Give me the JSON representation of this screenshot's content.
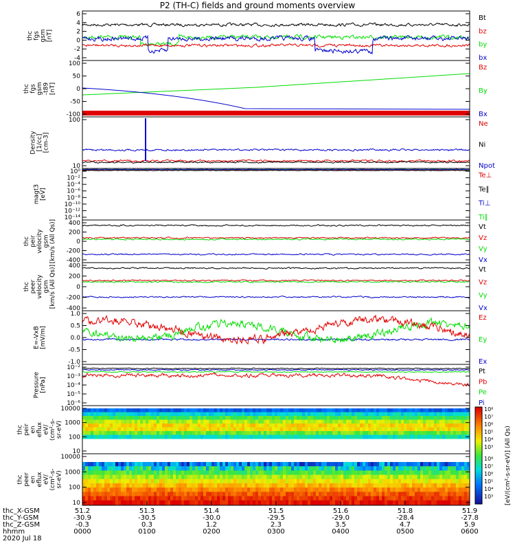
{
  "title": "P2 (TH-C) fields and ground moments overview",
  "colors": {
    "black": "#000000",
    "red": "#e00000",
    "green": "#00dd00",
    "blue": "#0000cc"
  },
  "chart_data": {
    "type": "line",
    "panels": [
      {
        "ylabel": [
          "thc",
          "fgs",
          "gsm",
          "[nT]"
        ],
        "ylim": [
          -4,
          6
        ],
        "ticks": [
          "6",
          "4",
          "2",
          "0",
          "-2",
          "-4"
        ],
        "legend": [
          {
            "name": "Bt",
            "color": "black"
          },
          {
            "name": "bz",
            "color": "red"
          },
          {
            "name": "by",
            "color": "green"
          },
          {
            "name": "bx",
            "color": "blue"
          }
        ]
      },
      {
        "ylabel": [
          "thc",
          "fgs",
          "gsm",
          "-t89",
          "[nT]"
        ],
        "ylim": [
          -130,
          100
        ],
        "ticks": [
          "100",
          "50",
          "0",
          "-50",
          "-100"
        ],
        "legend": [
          {
            "name": "Bz",
            "color": "red"
          },
          {
            "name": "By",
            "color": "green"
          },
          {
            "name": "Bx",
            "color": "blue"
          }
        ]
      },
      {
        "ylabel": [
          "Density",
          "[1/cc]",
          "[cm-3]"
        ],
        "scale": "log",
        "ticks": [
          "100",
          "10"
        ],
        "legend": [
          {
            "name": "Ne",
            "color": "red"
          },
          {
            "name": "Ni",
            "color": "black"
          },
          {
            "name": "Npot",
            "color": "blue"
          }
        ]
      },
      {
        "ylabel": [
          "magt3",
          "[eV]"
        ],
        "scale": "log",
        "ticks": [
          "10⁰",
          "10⁻²",
          "10⁻⁴",
          "10⁻⁶",
          "10⁻⁸",
          "10⁻¹⁰",
          "10⁻¹²",
          "10⁻¹⁴"
        ],
        "legend": [
          {
            "name": "Te⊥",
            "color": "red"
          },
          {
            "name": "Te∥",
            "color": "black"
          },
          {
            "name": "Ti⊥",
            "color": "blue"
          },
          {
            "name": "Ti∥",
            "color": "green"
          }
        ]
      },
      {
        "ylabel": [
          "thc",
          "peir",
          "velocity",
          "gsm",
          "[km/s (All Qs)]"
        ],
        "ylim": [
          -450,
          450
        ],
        "ticks": [
          "400",
          "200",
          "0",
          "-200",
          "-400"
        ],
        "legend": [
          {
            "name": "Vt",
            "color": "black"
          },
          {
            "name": "Vz",
            "color": "red"
          },
          {
            "name": "Vy",
            "color": "green"
          },
          {
            "name": "Vx",
            "color": "blue"
          }
        ]
      },
      {
        "ylabel": [
          "thc",
          "peer",
          "velocity",
          "gsm",
          "[km/s (All Qs)]"
        ],
        "ylim": [
          -450,
          450
        ],
        "ticks": [
          "400",
          "200",
          "0",
          "-200",
          "-400"
        ],
        "legend": [
          {
            "name": "Vt",
            "color": "black"
          },
          {
            "name": "Vz",
            "color": "red"
          },
          {
            "name": "Vy",
            "color": "green"
          },
          {
            "name": "Vx",
            "color": "blue"
          }
        ]
      },
      {
        "ylabel": [
          "E=-VxB",
          "[mV/m]"
        ],
        "ylim": [
          -1.1,
          1.4
        ],
        "ticks": [
          "1.0",
          "0.5",
          "0.0",
          "-0.5",
          "-1.0"
        ],
        "legend": [
          {
            "name": "Ez",
            "color": "red"
          },
          {
            "name": "Ey",
            "color": "green"
          },
          {
            "name": "Ex",
            "color": "blue"
          }
        ]
      },
      {
        "ylabel": [
          "Pressure",
          "[nPa]"
        ],
        "scale": "log",
        "ticks": [
          "10⁻²",
          "10⁻³",
          "10⁻⁴",
          "10⁻⁵",
          "10⁻⁶"
        ],
        "legend": [
          {
            "name": "Pt",
            "color": "black"
          },
          {
            "name": "Pb",
            "color": "red"
          },
          {
            "name": "Pe",
            "color": "green"
          },
          {
            "name": "Pi",
            "color": "blue"
          }
        ]
      },
      {
        "ylabel": [
          "thc",
          "peir",
          "en",
          "eflux",
          "eV/",
          "(cm²-s-",
          "sr-eV)"
        ],
        "type": "heatmap",
        "ticks": [
          "10000",
          "1000",
          "100",
          "10"
        ]
      },
      {
        "ylabel": [
          "thc",
          "peer",
          "en",
          "eflux",
          "eV/",
          "(cm²-s-",
          "sr-eV)"
        ],
        "type": "heatmap",
        "ticks": [
          "10000",
          "1000",
          "100",
          "10"
        ]
      }
    ],
    "colorbar": {
      "ticks": [
        "10⁸",
        "10⁷",
        "10⁶",
        "10⁵",
        "10⁴",
        "10³"
      ],
      "label": "[eV/(cm²-s-sr-eV)] (All Qs)"
    },
    "x_axis": {
      "row_labels": [
        "thc_X-GSM",
        "thc_Y-GSM",
        "thc_Z-GSM",
        "hhmm",
        "2020 Jul 18"
      ],
      "ticks": [
        {
          "top": "51.2",
          "x": "-30.9",
          "y": "-0.3",
          "t": "0000"
        },
        {
          "top": "51.3",
          "x": "-30.5",
          "y": "0.3",
          "t": "0100"
        },
        {
          "top": "51.4",
          "x": "-30.0",
          "y": "1.2",
          "t": "0200"
        },
        {
          "top": "51.5",
          "x": "-29.5",
          "y": "2.3",
          "t": "0300"
        },
        {
          "top": "51.6",
          "x": "-29.0",
          "y": "3.5",
          "t": "0400"
        },
        {
          "top": "51.8",
          "x": "-28.4",
          "y": "4.7",
          "t": "0500"
        },
        {
          "top": "51.9",
          "x": "-27.8",
          "y": "5.9",
          "t": "0600"
        }
      ]
    }
  }
}
